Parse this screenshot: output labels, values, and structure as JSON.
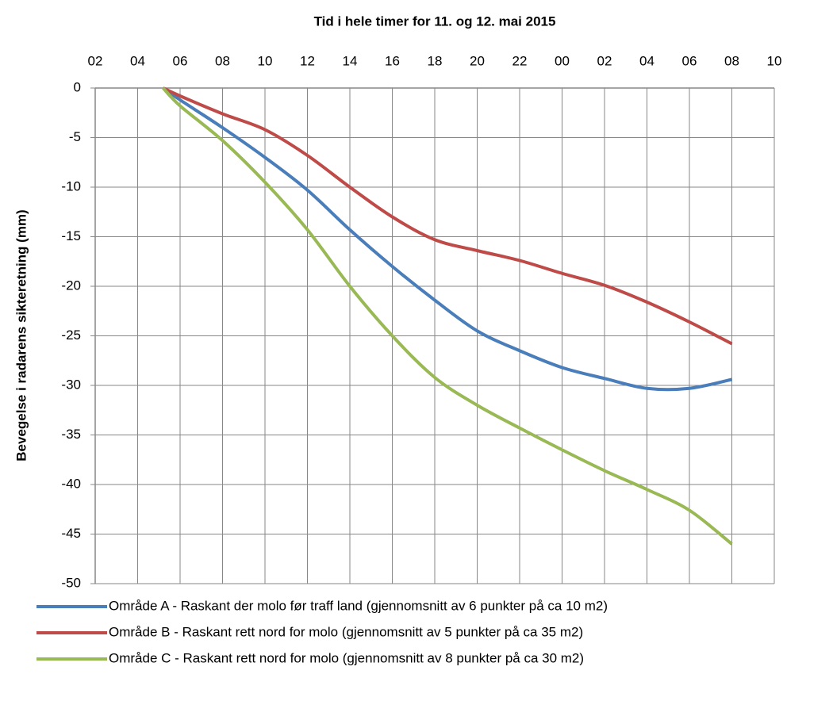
{
  "chart_data": {
    "type": "line",
    "title": "Tid i hele timer for 11. og 12. mai 2015",
    "y_label": "Bevegelse i radarens sikteretning (mm)",
    "xlim": [
      2,
      34
    ],
    "xticks": [
      {
        "value": 2,
        "label": "02"
      },
      {
        "value": 4,
        "label": "04"
      },
      {
        "value": 6,
        "label": "06"
      },
      {
        "value": 8,
        "label": "08"
      },
      10,
      12,
      14,
      16,
      18,
      20,
      22,
      {
        "value": 24,
        "label": "00"
      },
      {
        "value": 26,
        "label": "02"
      },
      {
        "value": 28,
        "label": "04"
      },
      {
        "value": 30,
        "label": "06"
      },
      {
        "value": 32,
        "label": "08"
      },
      {
        "value": 34,
        "label": "10"
      }
    ],
    "ylim": [
      -50,
      0
    ],
    "yticks": [
      0,
      -5,
      -10,
      -15,
      -20,
      -25,
      -30,
      -35,
      -40,
      -45,
      -50
    ],
    "grid": true,
    "x_axis_position": "top",
    "legend": "bottom",
    "x": [
      5.2,
      6,
      8,
      10,
      12,
      14,
      16,
      18,
      20,
      22,
      24,
      26,
      28,
      30,
      32
    ],
    "series": [
      {
        "name": "Område A - Raskant der molo før traff land (gjennomsnitt av 6 punkter på ca 10 m2)",
        "color": "#4a7ebb",
        "values": [
          0,
          -1.2,
          -4,
          -7,
          -10.3,
          -14.3,
          -18,
          -21.4,
          -24.5,
          -26.5,
          -28.2,
          -29.3,
          -30.3,
          -30.3,
          -29.4
        ]
      },
      {
        "name": "Område B - Raskant rett nord for molo (gjennomsnitt av 5 punkter på ca 35 m2)",
        "color": "#be4b48",
        "values": [
          0,
          -0.8,
          -2.6,
          -4.2,
          -6.8,
          -10,
          -13,
          -15.3,
          -16.4,
          -17.4,
          -18.7,
          -19.9,
          -21.6,
          -23.6,
          -25.8
        ]
      },
      {
        "name": "Område C - Raskant rett nord for molo (gjennomsnitt av 8 punkter på ca 30 m2)",
        "color": "#98b954",
        "values": [
          0,
          -1.8,
          -5.3,
          -9.5,
          -14.3,
          -20,
          -25,
          -29.2,
          -32,
          -34.3,
          -36.5,
          -38.6,
          -40.5,
          -42.6,
          -46
        ]
      }
    ]
  }
}
